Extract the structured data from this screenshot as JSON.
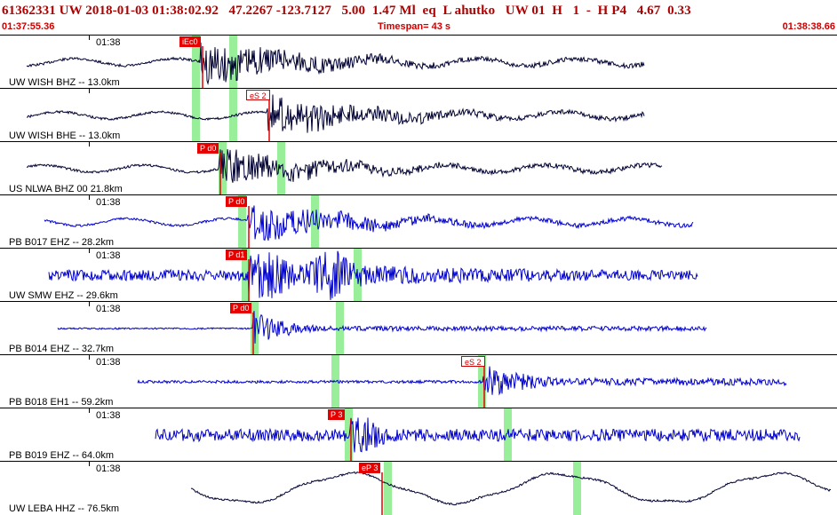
{
  "header": {
    "title": "61362331 UW 2018-01-03 01:38:02.92   47.2267 -123.7127   5.00  1.47 Ml  eq  L ahutko   UW 01  H   1  -  H P4   4.67  0.33",
    "start_time": "01:37:55.36",
    "timespan": "Timespan=  43 s",
    "end_time": "01:38:38.66"
  },
  "colors": {
    "waveform_black": "#000033",
    "waveform_blue": "#0000cc",
    "pick_red": "#e60000",
    "window_green": "#99ee99"
  },
  "traces": [
    {
      "station": "UW WISH BHZ -- 13.0km",
      "time_label": "01:38",
      "color": "black",
      "pick_label": "iEc0",
      "pick_type": "p"
    },
    {
      "station": "UW WISH BHE -- 13.0km",
      "time_label": "",
      "color": "black",
      "pick_label": "eS 2",
      "pick_type": "s"
    },
    {
      "station": "US NLWA BHZ 00 21.8km",
      "time_label": "",
      "color": "black",
      "pick_label": "P d0",
      "pick_type": "p"
    },
    {
      "station": "PB B017 EHZ -- 28.2km",
      "time_label": "01:38",
      "color": "blue",
      "pick_label": "P d0",
      "pick_type": "p"
    },
    {
      "station": "UW SMW EHZ -- 29.6km",
      "time_label": "01:38",
      "color": "blue",
      "pick_label": "P d1",
      "pick_type": "p"
    },
    {
      "station": "PB B014 EHZ -- 32.7km",
      "time_label": "01:38",
      "color": "blue",
      "pick_label": "P d0",
      "pick_type": "p"
    },
    {
      "station": "PB B018 EH1 -- 59.2km",
      "time_label": "01:38",
      "color": "blue",
      "pick_label": "eS 2",
      "pick_type": "s"
    },
    {
      "station": "PB B019 EHZ -- 64.0km",
      "time_label": "01:38",
      "color": "blue",
      "pick_label": "P 3",
      "pick_type": "p"
    },
    {
      "station": "UW LEBA HHZ -- 76.5km",
      "time_label": "01:38",
      "color": "black",
      "pick_label": "eP 3",
      "pick_type": "p"
    }
  ]
}
